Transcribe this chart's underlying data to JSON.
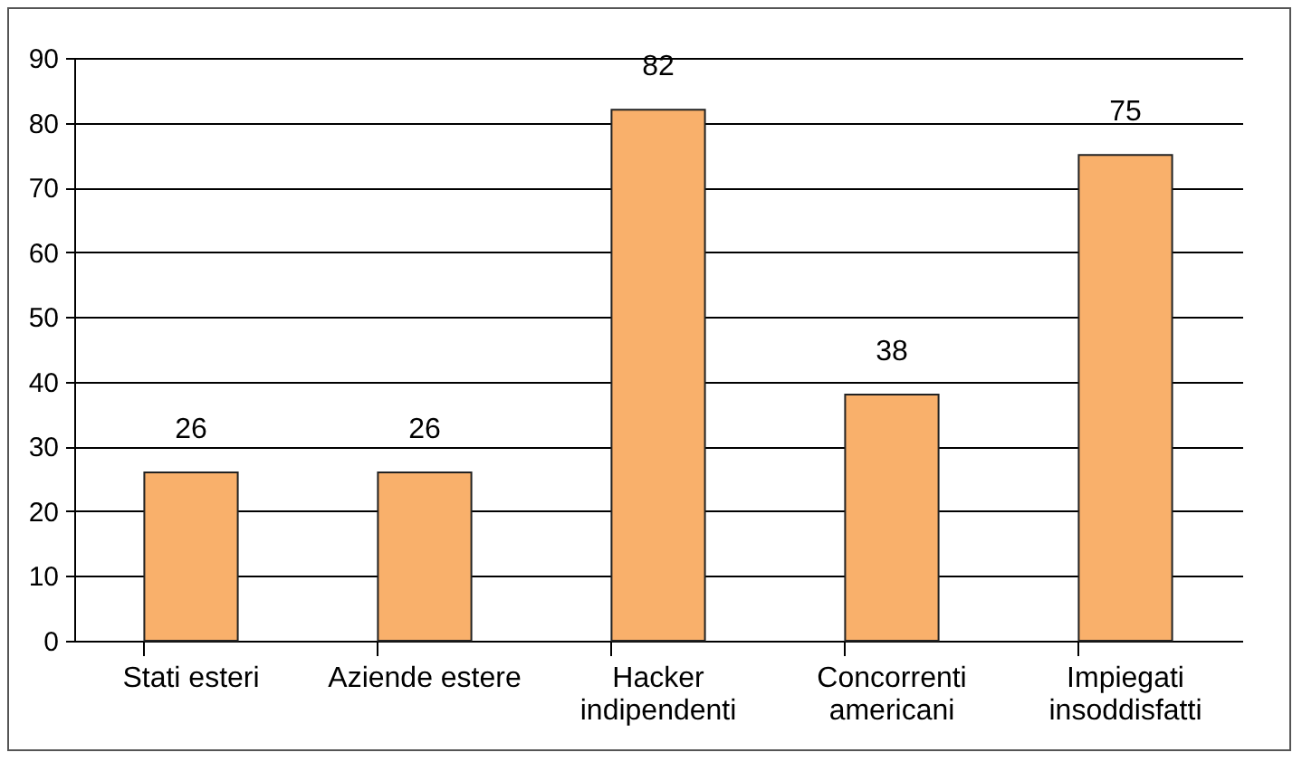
{
  "chart_data": {
    "type": "bar",
    "categories": [
      "Stati esteri",
      "Aziende estere",
      "Hacker indipendenti",
      "Concorrenti americani",
      "Impiegati insoddisfatti"
    ],
    "values": [
      26,
      26,
      82,
      38,
      75
    ],
    "color": "#f9b06b",
    "ylim": [
      0,
      90
    ],
    "yticks": [
      0,
      10,
      20,
      30,
      40,
      50,
      60,
      70,
      80,
      90
    ],
    "grid": "y",
    "data_labels": true
  }
}
